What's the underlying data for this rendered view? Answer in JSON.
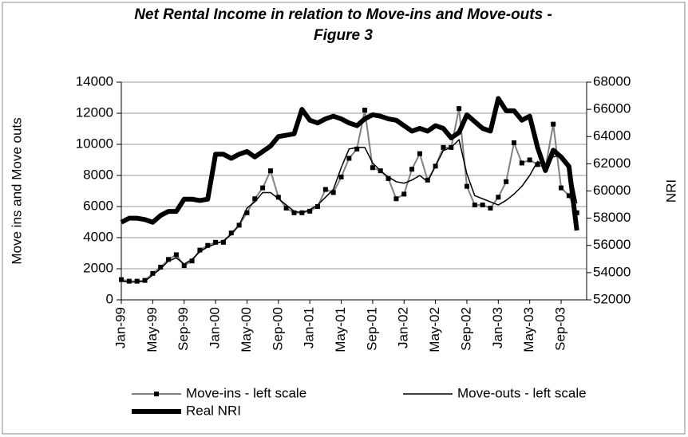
{
  "chart_data": {
    "type": "line",
    "title": "Net Rental Income in relation to Move-ins and Move-outs - Figure 3",
    "y_label": "Move ins and Move outs",
    "y2_label": "NRI",
    "categories": [
      "Jan-99",
      null,
      null,
      null,
      "May-99",
      null,
      null,
      null,
      "Sep-99",
      null,
      null,
      null,
      "Jan-00",
      null,
      null,
      null,
      "May-00",
      null,
      null,
      null,
      "Sep-00",
      null,
      null,
      null,
      "Jan-01",
      null,
      null,
      null,
      "May-01",
      null,
      null,
      null,
      "Sep-01",
      null,
      null,
      null,
      "Jan-02",
      null,
      null,
      null,
      "May-02",
      null,
      null,
      null,
      "Sep-02",
      null,
      null,
      null,
      "Jan-03",
      null,
      null,
      null,
      "May-03",
      null,
      null,
      null,
      "Sep-03",
      null,
      null
    ],
    "series": [
      {
        "name": "Move-ins - left scale",
        "color": "#808080",
        "marker": "square",
        "width": 2,
        "values": [
          1300,
          1200,
          1200,
          1250,
          1700,
          2100,
          2600,
          2900,
          2200,
          2500,
          3200,
          3500,
          3700,
          3700,
          4300,
          4800,
          5600,
          6500,
          7200,
          8300,
          6600,
          5900,
          5600,
          5600,
          5700,
          6000,
          7100,
          6900,
          7900,
          9100,
          9700,
          12200,
          8500,
          8300,
          7800,
          6500,
          6800,
          8400,
          9400,
          7700,
          8600,
          9800,
          9800,
          12300,
          7300,
          6100,
          6100,
          5900,
          6600,
          7600,
          10100,
          8800,
          9000,
          8700,
          8500,
          11300,
          7200,
          6700,
          5600
        ]
      },
      {
        "name": "Move-outs - left scale",
        "color": "#000000",
        "width": 1.5,
        "values": [
          1200,
          1150,
          1150,
          1200,
          1600,
          2000,
          2500,
          2700,
          2300,
          2600,
          3100,
          3400,
          3600,
          3800,
          4200,
          4800,
          5900,
          6300,
          6900,
          6900,
          6500,
          6100,
          5700,
          5600,
          5800,
          6100,
          6600,
          7100,
          8500,
          9700,
          9800,
          9800,
          8800,
          8300,
          7900,
          7600,
          7500,
          7700,
          8000,
          7600,
          8600,
          9600,
          9800,
          10300,
          8100,
          6700,
          6500,
          6300,
          6100,
          6400,
          6800,
          7300,
          8000,
          8900,
          8600,
          9200,
          9300,
          8700,
          6200
        ]
      },
      {
        "name": "Real NRI",
        "color": "#000000",
        "width": 6,
        "axis": "y2",
        "values": [
          57700,
          58000,
          58000,
          57900,
          57700,
          58200,
          58500,
          58500,
          59400,
          59400,
          59300,
          59400,
          62700,
          62700,
          62400,
          62700,
          62900,
          62500,
          62900,
          63300,
          64000,
          64100,
          64200,
          66000,
          65200,
          65000,
          65300,
          65500,
          65300,
          65000,
          64800,
          65300,
          65600,
          65500,
          65300,
          65200,
          64800,
          64400,
          64600,
          64400,
          64800,
          64600,
          63900,
          64300,
          65600,
          65100,
          64600,
          64400,
          66800,
          65900,
          65900,
          65200,
          65500,
          63200,
          61500,
          63000,
          62500,
          61800,
          57100
        ]
      }
    ],
    "ylim": [
      0,
      14000
    ],
    "yticks": [
      0,
      2000,
      4000,
      6000,
      8000,
      10000,
      12000,
      14000
    ],
    "y2lim": [
      52000,
      68000
    ],
    "y2ticks": [
      52000,
      54000,
      56000,
      58000,
      60000,
      62000,
      64000,
      66000,
      68000
    ],
    "grid": true,
    "legend": "bottom"
  }
}
